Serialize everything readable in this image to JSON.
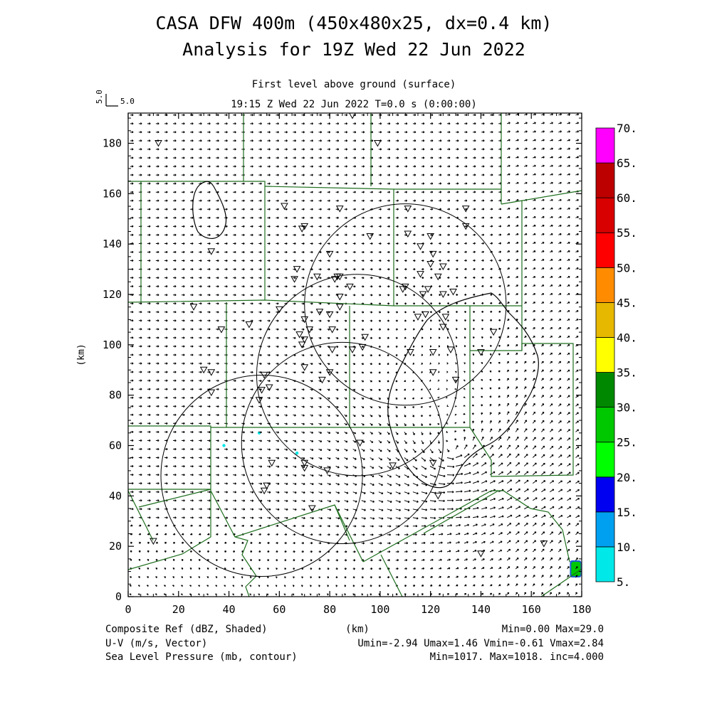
{
  "title": {
    "line1": "CASA DFW 400m (450x480x25, dx=0.4 km)",
    "line2": "Analysis for 19Z Wed 22 Jun 2022"
  },
  "subtitle": {
    "level": "First level above ground (surface)",
    "time": "19:15 Z Wed 22 Jun 2022    T=0.0 s (0:00:00)"
  },
  "vector_key": {
    "label_x": "5.0",
    "label_y": "5.0"
  },
  "axes": {
    "xlabel": "(km)",
    "ylabel": "(km)",
    "xlim": [
      0,
      180
    ],
    "ylim": [
      0,
      192
    ],
    "xticks": [
      "0",
      "20",
      "40",
      "60",
      "80",
      "100",
      "120",
      "140",
      "160",
      "180"
    ],
    "yticks": [
      "0",
      "20",
      "40",
      "60",
      "80",
      "100",
      "120",
      "140",
      "160",
      "180"
    ]
  },
  "colorbar": {
    "labels": [
      "5.",
      "10.",
      "15.",
      "20.",
      "25.",
      "30.",
      "35.",
      "40.",
      "45.",
      "50.",
      "55.",
      "60.",
      "65.",
      "70."
    ],
    "colors": [
      "#00e8e8",
      "#00a0f0",
      "#0000f0",
      "#00ff00",
      "#00c800",
      "#008800",
      "#ffff00",
      "#e6b800",
      "#ff8c00",
      "#ff0000",
      "#d80000",
      "#bc0000",
      "#ff00ff"
    ]
  },
  "footer": {
    "left1": "Composite Ref (dBZ, Shaded)",
    "left2": "U-V (m/s, Vector)",
    "left3": "Sea Level Pressure (mb, contour)",
    "center1": "(km)",
    "right1": "Min=0.00 Max=29.0",
    "right2": "Umin=-2.94 Umax=1.46 Vmin=-0.61 Vmax=2.84",
    "right3": "Min=1017. Max=1018. inc=4.000"
  },
  "map_data": {
    "range_rings": [
      {
        "center_km": [
          53,
          48
        ],
        "radius_km": 40
      },
      {
        "center_km": [
          85,
          61
        ],
        "radius_km": 40
      },
      {
        "center_km": [
          91,
          88
        ],
        "radius_km": 40
      },
      {
        "center_km": [
          110,
          116
        ],
        "radius_km": 40
      }
    ],
    "stations_km": [
      [
        89,
        191
      ],
      [
        12,
        180
      ],
      [
        99,
        180
      ],
      [
        62,
        155
      ],
      [
        84,
        154
      ],
      [
        111,
        154
      ],
      [
        134,
        154
      ],
      [
        70,
        147
      ],
      [
        69,
        146
      ],
      [
        134,
        147
      ],
      [
        111,
        144
      ],
      [
        120,
        143
      ],
      [
        96,
        143
      ],
      [
        80,
        136
      ],
      [
        33,
        137
      ],
      [
        116,
        139
      ],
      [
        121,
        136
      ],
      [
        120,
        132
      ],
      [
        125,
        131
      ],
      [
        123,
        127
      ],
      [
        67,
        130
      ],
      [
        66,
        126
      ],
      [
        75,
        127
      ],
      [
        83,
        127
      ],
      [
        84,
        127
      ],
      [
        82,
        126
      ],
      [
        88,
        123
      ],
      [
        116,
        128
      ],
      [
        110,
        123
      ],
      [
        119,
        122
      ],
      [
        109,
        122
      ],
      [
        117,
        120
      ],
      [
        125,
        120
      ],
      [
        129,
        121
      ],
      [
        84,
        119
      ],
      [
        26,
        115
      ],
      [
        76,
        113
      ],
      [
        60,
        114
      ],
      [
        84,
        115
      ],
      [
        118,
        112
      ],
      [
        115,
        111
      ],
      [
        126,
        111
      ],
      [
        70,
        110
      ],
      [
        80,
        112
      ],
      [
        48,
        108
      ],
      [
        125,
        107
      ],
      [
        37,
        106
      ],
      [
        72,
        106
      ],
      [
        81,
        106
      ],
      [
        145,
        105
      ],
      [
        68,
        104
      ],
      [
        70,
        102
      ],
      [
        69,
        100
      ],
      [
        94,
        103
      ],
      [
        93,
        99
      ],
      [
        89,
        98
      ],
      [
        81,
        98
      ],
      [
        112,
        97
      ],
      [
        121,
        97
      ],
      [
        128,
        98
      ],
      [
        140,
        97
      ],
      [
        30,
        90
      ],
      [
        54,
        88
      ],
      [
        33,
        89
      ],
      [
        121,
        89
      ],
      [
        80,
        89
      ],
      [
        70,
        91
      ],
      [
        77,
        86
      ],
      [
        53,
        82
      ],
      [
        56,
        83
      ],
      [
        130,
        86
      ],
      [
        52,
        78
      ],
      [
        33,
        81
      ],
      [
        92,
        61
      ],
      [
        57,
        53
      ],
      [
        105,
        52
      ],
      [
        121,
        53
      ],
      [
        70,
        53
      ],
      [
        79,
        50
      ],
      [
        70,
        51
      ],
      [
        55,
        44
      ],
      [
        54,
        42
      ],
      [
        123,
        40
      ],
      [
        73,
        35
      ],
      [
        10,
        22
      ],
      [
        140,
        17
      ],
      [
        165,
        21
      ]
    ],
    "echoes": [
      {
        "center_km": [
          177,
          11
        ],
        "level": "25"
      },
      {
        "center_km": [
          38,
          60
        ],
        "level": "5"
      },
      {
        "center_km": [
          52,
          65
        ],
        "level": "5"
      },
      {
        "center_km": [
          67,
          57
        ],
        "level": "5"
      }
    ]
  }
}
